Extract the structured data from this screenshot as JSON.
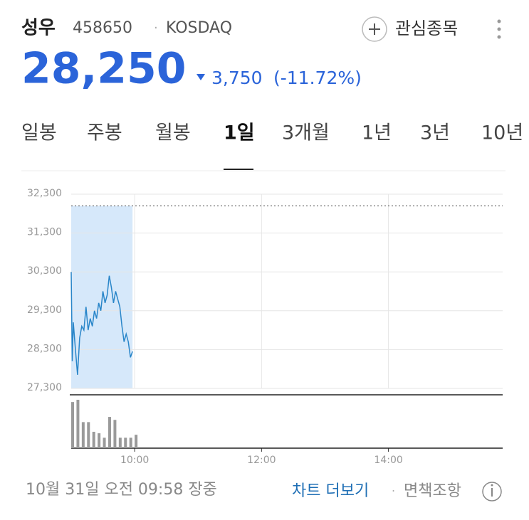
{
  "header": {
    "name": "성우",
    "code": "458650",
    "separator": "·",
    "market": "KOSDAQ",
    "watch": "관심종목"
  },
  "quote": {
    "price": "28,250",
    "change": "3,750",
    "change_pct": "(-11.72%)"
  },
  "tabs": [
    "일봉",
    "주봉",
    "월봉",
    "1일",
    "3개월",
    "1년",
    "3년",
    "10년"
  ],
  "chart_data": {
    "type": "line",
    "color": "#2a86c9",
    "shade_color": "#d6e8fa",
    "grid": true,
    "x": [
      540,
      541,
      542,
      544,
      546,
      548,
      550,
      552,
      554,
      556,
      558,
      560,
      562,
      564,
      566,
      568,
      570,
      572,
      574,
      576,
      578,
      580,
      582,
      584,
      586,
      588,
      590,
      592,
      594,
      596,
      598
    ],
    "values": [
      30300,
      28000,
      29000,
      28300,
      27650,
      28600,
      28900,
      28800,
      29400,
      28800,
      29100,
      28900,
      29300,
      29100,
      29500,
      29300,
      29800,
      29500,
      29700,
      30200,
      29900,
      29500,
      29800,
      29600,
      29400,
      28900,
      28500,
      28700,
      28500,
      28100,
      28250
    ],
    "previous_close": 32000,
    "ylim": [
      27300,
      32300
    ],
    "yticks": [
      {
        "value": 27300,
        "label": "27,300"
      },
      {
        "value": 28300,
        "label": "28,300"
      },
      {
        "value": 29300,
        "label": "29,300"
      },
      {
        "value": 30300,
        "label": "30,300"
      },
      {
        "value": 31300,
        "label": "31,300"
      },
      {
        "value": 32300,
        "label": "32,300"
      }
    ],
    "xlim": [
      540,
      948
    ],
    "xticks": [
      {
        "value": 600,
        "label": "10:00"
      },
      {
        "value": 720,
        "label": "12:00"
      },
      {
        "value": 840,
        "label": "14:00"
      }
    ],
    "volume": {
      "color": "#9a9a9a",
      "x": [
        540,
        545,
        550,
        555,
        560,
        565,
        570,
        575,
        580,
        585,
        590,
        595,
        600
      ],
      "values": [
        62,
        65,
        35,
        35,
        22,
        20,
        14,
        42,
        38,
        14,
        14,
        14,
        18
      ]
    }
  },
  "footer": {
    "time": "10월 31일 오전 09:58 장중",
    "more": "차트 더보기",
    "separator": "·",
    "disclaimer": "면책조항"
  }
}
